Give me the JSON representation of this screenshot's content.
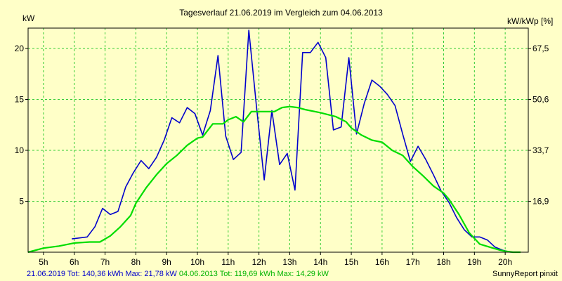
{
  "chart_data": {
    "type": "line",
    "title": "Tagesverlauf 21.06.2019 im Vergleich zum 04.06.2013",
    "ylabel_left": "kW",
    "ylabel_right": "kW/kWp [%]",
    "xlim": [
      4.5,
      20.75
    ],
    "ylim": [
      0,
      22
    ],
    "x_ticks": [
      {
        "v": 5,
        "label": "5h"
      },
      {
        "v": 6,
        "label": "6h"
      },
      {
        "v": 7,
        "label": "7h"
      },
      {
        "v": 8,
        "label": "8h"
      },
      {
        "v": 9,
        "label": "9h"
      },
      {
        "v": 10,
        "label": "10h"
      },
      {
        "v": 11,
        "label": "11h"
      },
      {
        "v": 12,
        "label": "12h"
      },
      {
        "v": 13,
        "label": "13h"
      },
      {
        "v": 14,
        "label": "14h"
      },
      {
        "v": 15,
        "label": "15h"
      },
      {
        "v": 16,
        "label": "16h"
      },
      {
        "v": 17,
        "label": "17h"
      },
      {
        "v": 18,
        "label": "18h"
      },
      {
        "v": 19,
        "label": "19h"
      },
      {
        "v": 20,
        "label": "20h"
      }
    ],
    "y_ticks_left": [
      {
        "v": 5,
        "label": "5"
      },
      {
        "v": 10,
        "label": "10"
      },
      {
        "v": 15,
        "label": "15"
      },
      {
        "v": 20,
        "label": "20"
      }
    ],
    "y_ticks_right": [
      {
        "v": 5,
        "label": "16,9"
      },
      {
        "v": 10,
        "label": "33,7"
      },
      {
        "v": 15,
        "label": "50,6"
      },
      {
        "v": 20,
        "label": "67,5"
      }
    ],
    "grid": true,
    "series": [
      {
        "name": "21.06.2019",
        "color": "#0000cc",
        "x": [
          5.92,
          6.17,
          6.42,
          6.67,
          6.92,
          7.17,
          7.42,
          7.67,
          7.92,
          8.17,
          8.42,
          8.67,
          8.92,
          9.17,
          9.42,
          9.67,
          9.92,
          10.17,
          10.42,
          10.67,
          10.92,
          11.17,
          11.42,
          11.67,
          11.92,
          12.17,
          12.42,
          12.67,
          12.92,
          13.17,
          13.42,
          13.67,
          13.92,
          14.17,
          14.42,
          14.67,
          14.92,
          15.17,
          15.42,
          15.67,
          15.92,
          16.17,
          16.42,
          16.67,
          16.92,
          17.17,
          17.42,
          17.67,
          17.92,
          18.17,
          18.42,
          18.67,
          18.92,
          19.17,
          19.42,
          19.67,
          19.92,
          20.17
        ],
        "y": [
          1.3,
          1.4,
          1.5,
          2.5,
          4.3,
          3.7,
          4.0,
          6.4,
          7.8,
          9.0,
          8.2,
          9.3,
          11.0,
          13.2,
          12.7,
          14.2,
          13.6,
          11.5,
          13.9,
          19.3,
          11.4,
          9.1,
          9.8,
          21.8,
          14.3,
          7.1,
          13.9,
          8.6,
          9.7,
          6.1,
          19.6,
          19.6,
          20.6,
          19.1,
          12.0,
          12.3,
          19.1,
          11.6,
          14.6,
          16.9,
          16.3,
          15.5,
          14.4,
          11.6,
          8.9,
          10.4,
          9.1,
          7.6,
          6.0,
          4.9,
          3.4,
          2.2,
          1.5,
          1.5,
          1.2,
          0.5,
          0.2,
          0.0
        ]
      },
      {
        "name": "04.06.2013",
        "color": "#00dd00",
        "x": [
          4.5,
          5.0,
          5.5,
          6.0,
          6.5,
          6.83,
          7.17,
          7.5,
          7.83,
          8.0,
          8.33,
          8.67,
          9.0,
          9.33,
          9.67,
          10.0,
          10.17,
          10.5,
          10.83,
          11.0,
          11.25,
          11.5,
          11.75,
          12.0,
          12.5,
          12.75,
          13.0,
          13.25,
          13.5,
          14.0,
          14.5,
          14.83,
          15.0,
          15.33,
          15.67,
          16.0,
          16.33,
          16.67,
          17.0,
          17.33,
          17.67,
          18.0,
          18.17,
          18.5,
          18.83,
          19.17,
          19.5,
          19.83,
          20.0,
          20.25,
          20.5
        ],
        "y": [
          0.0,
          0.4,
          0.6,
          0.9,
          1.0,
          1.0,
          1.6,
          2.5,
          3.6,
          4.8,
          6.3,
          7.6,
          8.7,
          9.5,
          10.5,
          11.2,
          11.3,
          12.6,
          12.6,
          13.0,
          13.3,
          12.8,
          13.8,
          13.8,
          13.8,
          14.2,
          14.3,
          14.2,
          14.0,
          13.7,
          13.3,
          12.8,
          12.2,
          11.5,
          11.0,
          10.8,
          10.0,
          9.5,
          8.4,
          7.5,
          6.5,
          5.8,
          5.2,
          3.7,
          1.9,
          0.8,
          0.5,
          0.2,
          0.1,
          0.0,
          0.0
        ]
      }
    ],
    "footer": {
      "blue_text": "21.06.2019 Tot: 140,36 kWh Max: 21,78 kW",
      "green_text": " 04.06.2013 Tot: 119,69 kWh Max: 14,29 kW",
      "credit": "SunnyReport pinxit"
    }
  }
}
